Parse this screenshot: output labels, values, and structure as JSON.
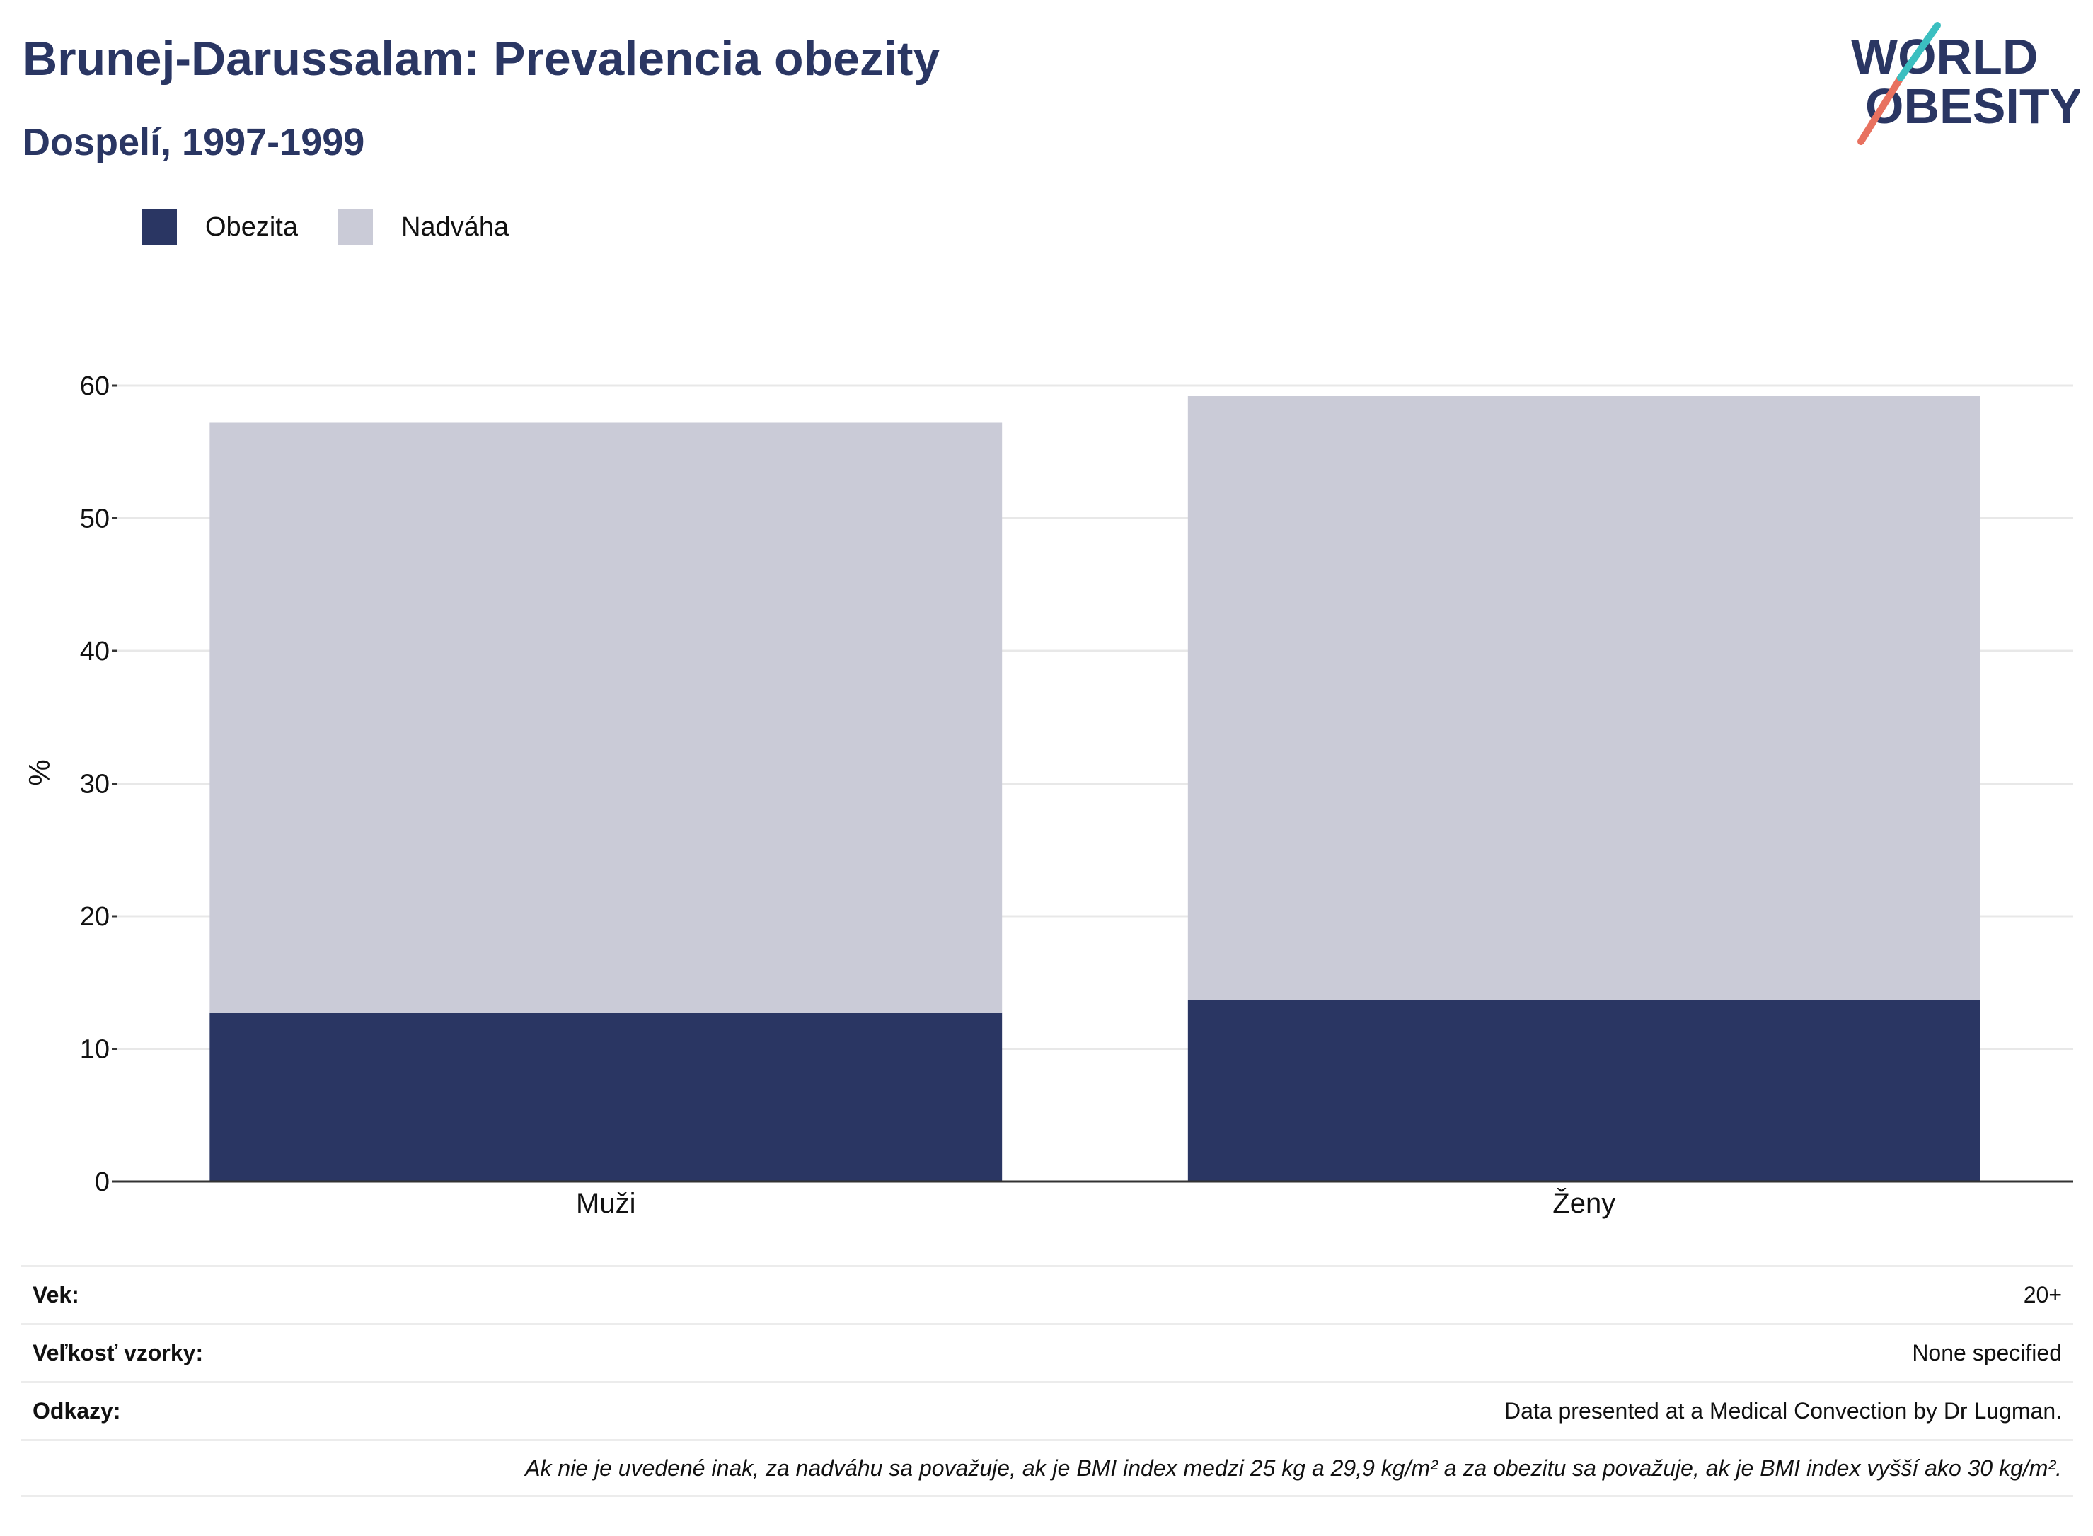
{
  "header": {
    "title": "Brunej-Darussalam: Prevalencia obezity",
    "subtitle": "Dospelí, 1997-1999"
  },
  "logo": {
    "line1": "WORLD",
    "line2": "OBESITY"
  },
  "colors": {
    "obesity": "#2a3663",
    "overweight": "#cacbd7",
    "title": "#2a3663",
    "grid": "#e8e8e8",
    "axis": "#333333"
  },
  "chart_data": {
    "type": "bar",
    "stacked": true,
    "categories": [
      "Muži",
      "Ženy"
    ],
    "series": [
      {
        "name": "Obezita",
        "values": [
          12.7,
          13.7
        ]
      },
      {
        "name": "Nadváha",
        "values": [
          44.5,
          45.5
        ]
      }
    ],
    "ylabel": "%",
    "ylim": [
      0,
      60
    ],
    "yticks": [
      0,
      10,
      20,
      30,
      40,
      50,
      60
    ],
    "grid": true,
    "legend_position": "top-left"
  },
  "info": {
    "rows": [
      {
        "label": "Vek:",
        "value": "20+"
      },
      {
        "label": "Veľkosť vzorky:",
        "value": "None specified"
      },
      {
        "label": "Odkazy:",
        "value": "Data presented at a Medical Convection by Dr Lugman."
      }
    ],
    "note": "Ak nie je uvedené inak, za nadváhu sa považuje, ak je BMI index medzi 25 kg a 29,9 kg/m² a za obezitu sa považuje, ak je BMI index vyšší ako 30 kg/m²."
  }
}
